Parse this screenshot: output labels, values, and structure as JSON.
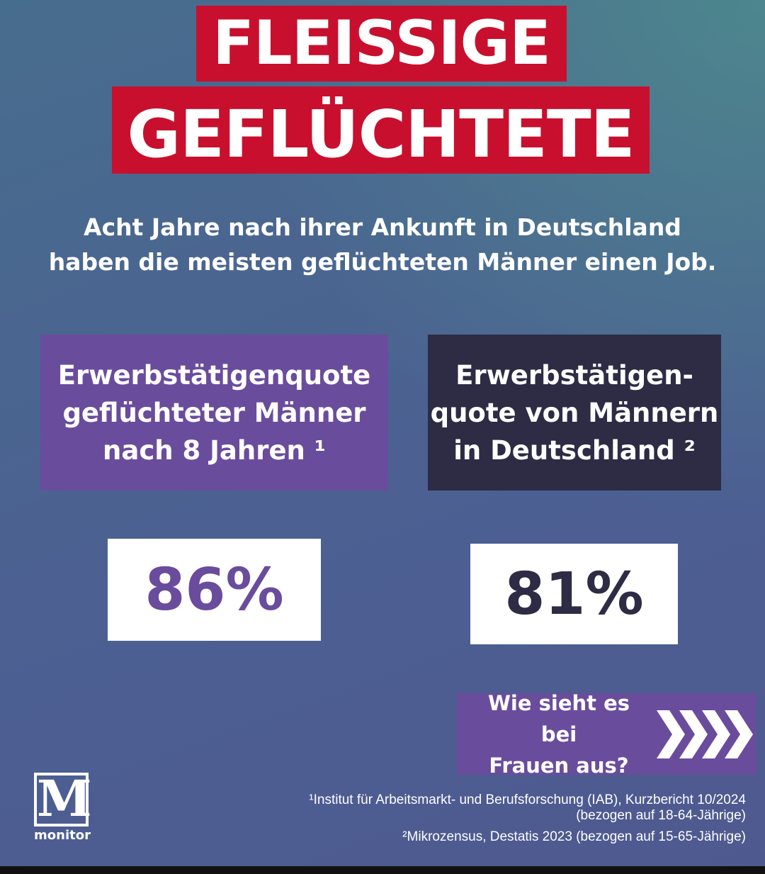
{
  "title": {
    "line1": "FLEISSIGE",
    "line2": "GEFLÜCHTETE"
  },
  "subtitle": {
    "line1": "Acht Jahre nach ihrer Ankunft in Deutschland",
    "line2": "haben die meisten geflüchteten Männer einen Job."
  },
  "left": {
    "line1": "Erwerbstätigenquote",
    "line2": "geflüchteter Männer",
    "line3": "nach 8 Jahren ¹",
    "value": "86%"
  },
  "right": {
    "line1": "Erwerbstätigen-",
    "line2": "quote von Männern",
    "line3": "in Deutschland ²",
    "value": "81%"
  },
  "cta": {
    "line1": "Wie sieht es bei",
    "line2": "Frauen aus?",
    "icon": "chevrons-right-icon"
  },
  "logo": {
    "letter": "M",
    "text": "monitor"
  },
  "footnotes": {
    "f1a": "¹Institut für Arbeitsmarkt- und Berufsforschung (IAB), Kurzbericht 10/2024",
    "f1b": "(bezogen auf 18-64-Jährige)",
    "f2": "²Mikrozensus, Destatis 2023 (bezogen auf 15-65-Jährige)"
  },
  "colors": {
    "red": "#c8102e",
    "purple": "#6a4c9c",
    "dark": "#2e2b45"
  }
}
